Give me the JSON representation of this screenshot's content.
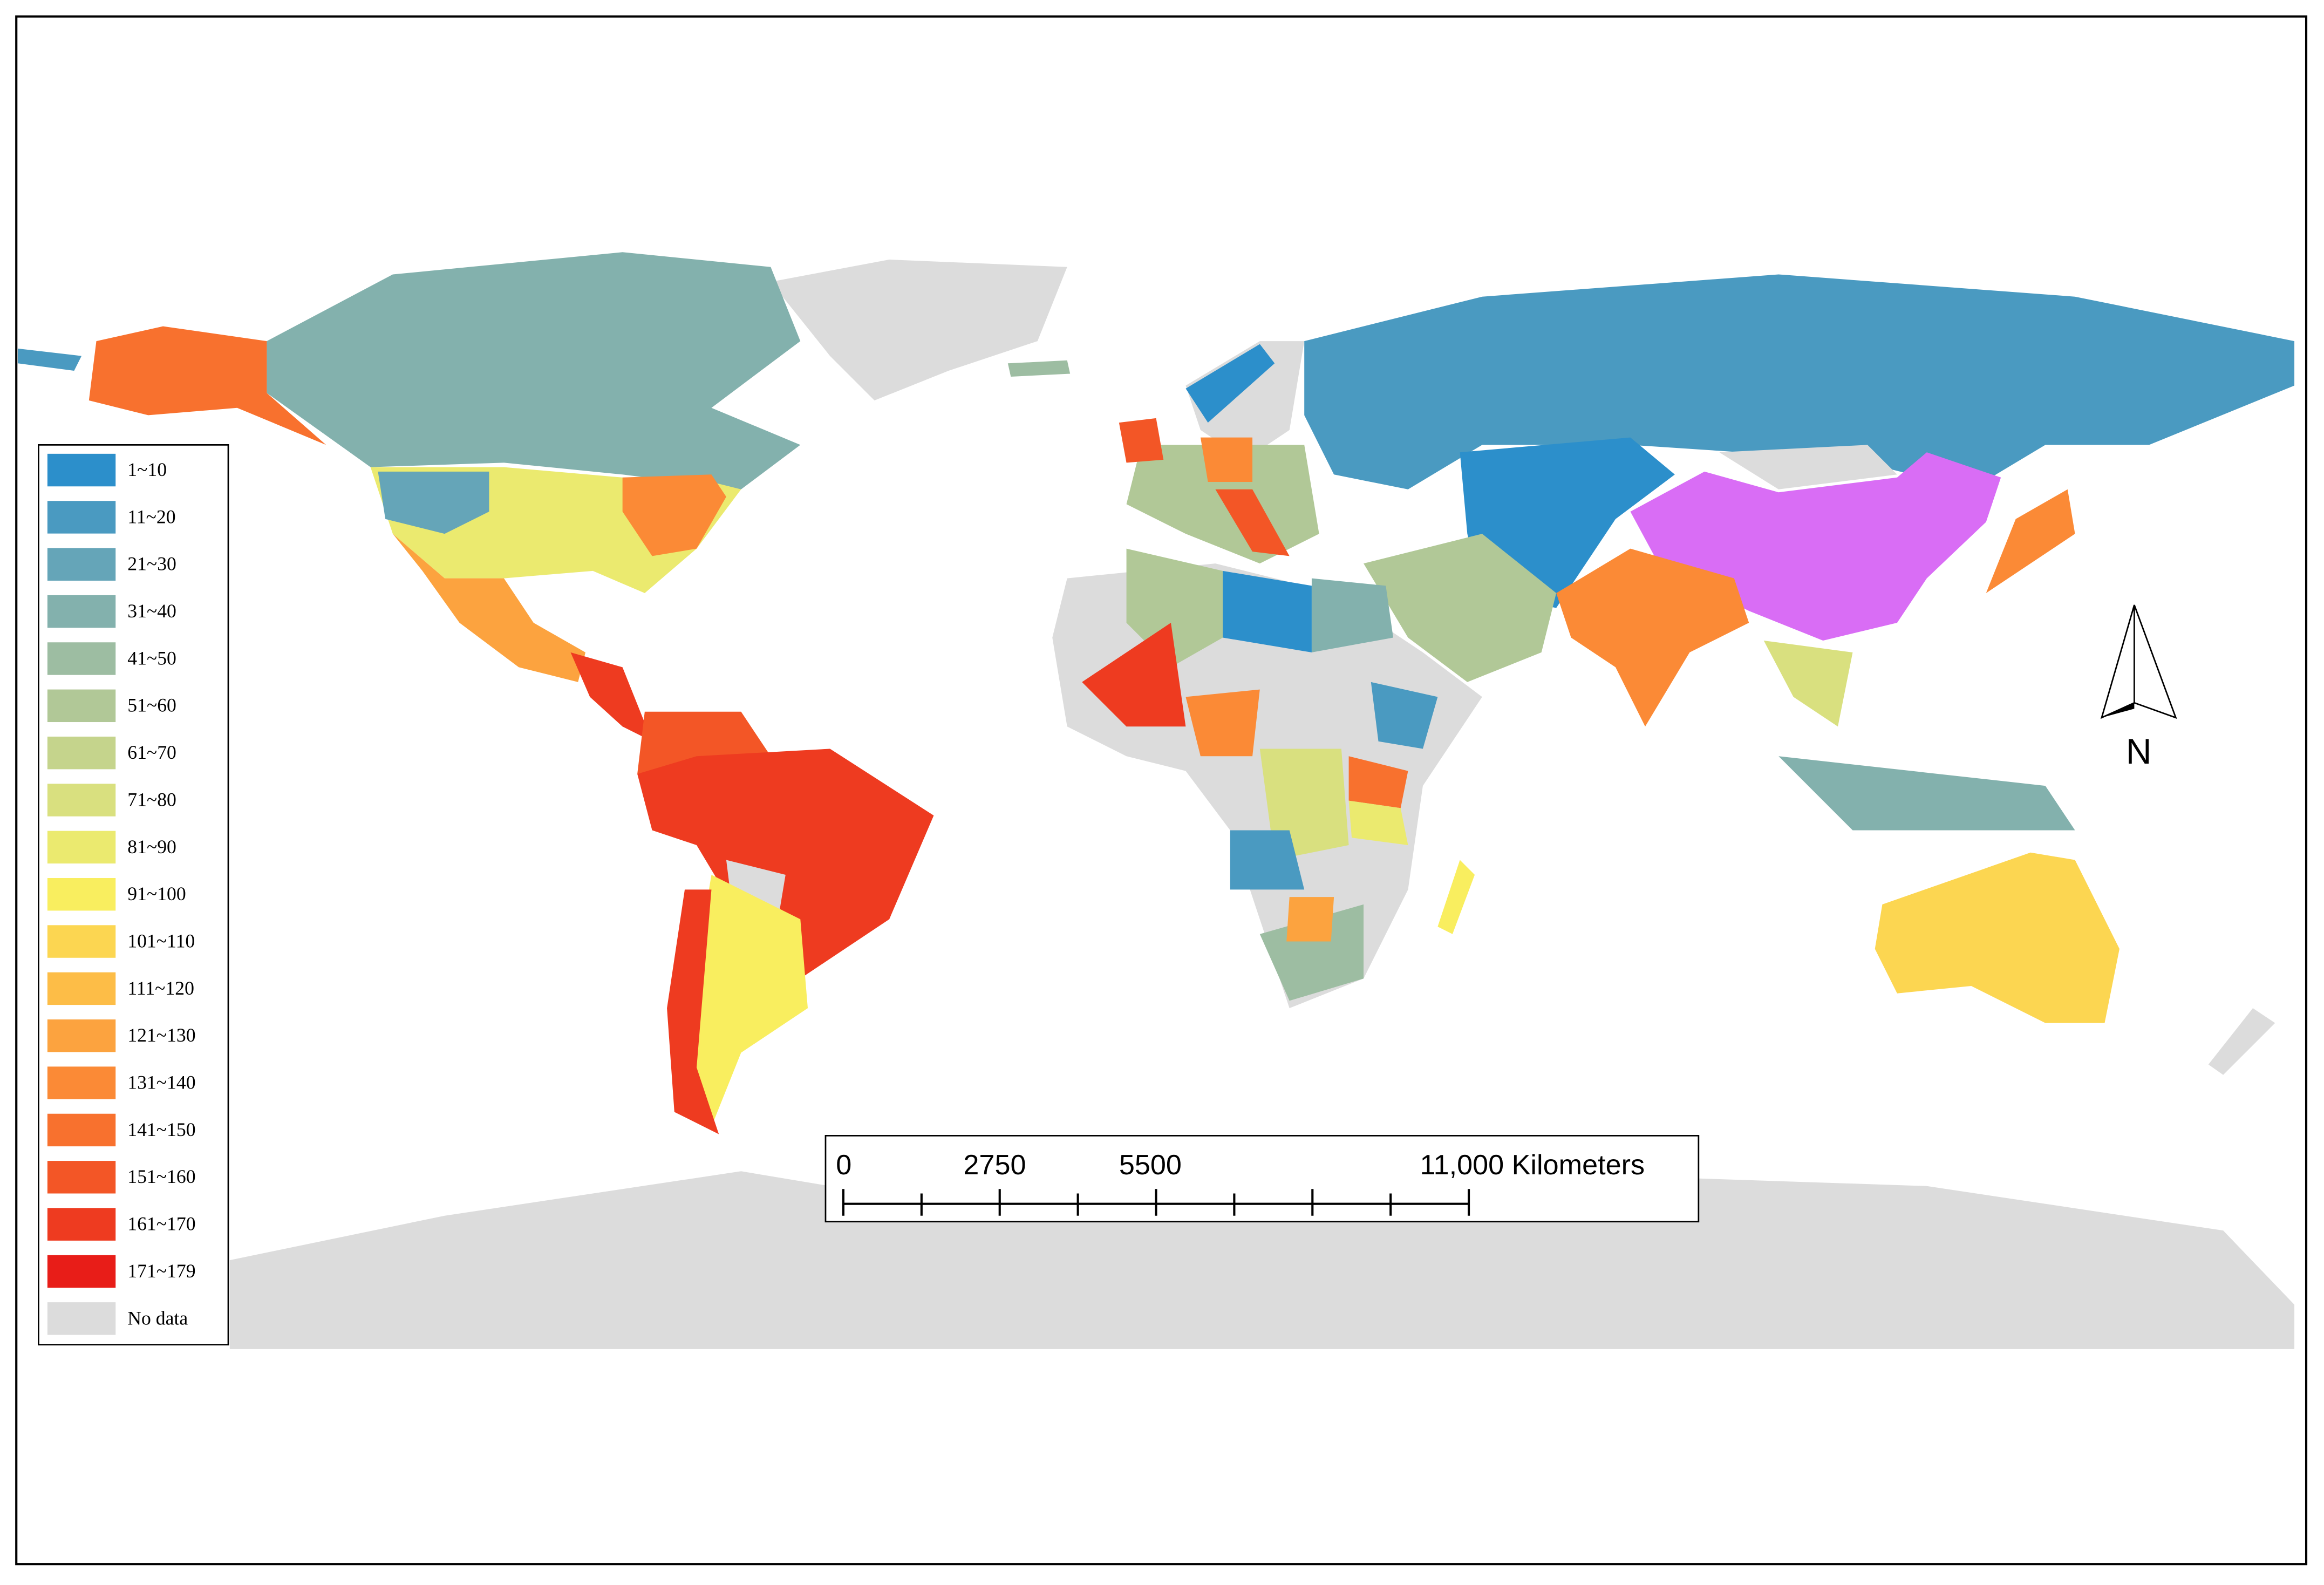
{
  "legend": {
    "items": [
      {
        "label": "1~10",
        "color": "#2c8fcb"
      },
      {
        "label": "11~20",
        "color": "#4a9ac1"
      },
      {
        "label": "21~30",
        "color": "#65a5b8"
      },
      {
        "label": "31~40",
        "color": "#83b1ad"
      },
      {
        "label": "41~50",
        "color": "#9dbda2"
      },
      {
        "label": "51~60",
        "color": "#b1c897"
      },
      {
        "label": "61~70",
        "color": "#c5d48c"
      },
      {
        "label": "71~80",
        "color": "#d9e07f"
      },
      {
        "label": "81~90",
        "color": "#ebea6f"
      },
      {
        "label": "91~100",
        "color": "#f9ee5f"
      },
      {
        "label": "101~110",
        "color": "#fcd651"
      },
      {
        "label": "111~120",
        "color": "#fdbd47"
      },
      {
        "label": "121~130",
        "color": "#fca33f"
      },
      {
        "label": "131~140",
        "color": "#fb8a36"
      },
      {
        "label": "141~150",
        "color": "#f8712e"
      },
      {
        "label": "151~160",
        "color": "#f35626"
      },
      {
        "label": "161~170",
        "color": "#ee3b20"
      },
      {
        "label": "171~179",
        "color": "#e81d18"
      },
      {
        "label": "No data",
        "color": "#dcdcdc"
      }
    ]
  },
  "scale_bar": {
    "labels": [
      "0",
      "2750",
      "5500",
      "11,000 Kilometers"
    ]
  },
  "north_arrow": "N"
}
